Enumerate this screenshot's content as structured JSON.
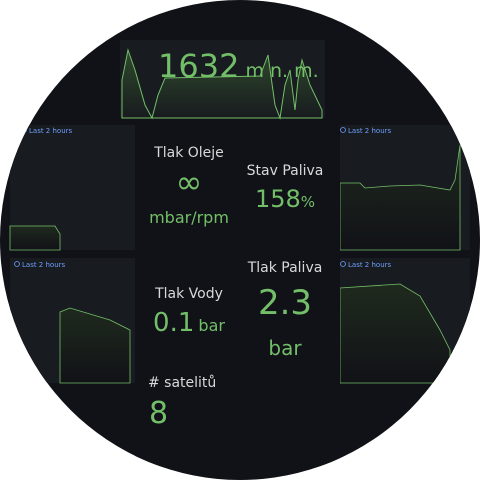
{
  "altitude": {
    "value": 1632,
    "unit": "m n. m."
  },
  "time_ranges": [
    "Last 2 hours",
    "Last 2 hours",
    "Last 2 hours",
    "Last 2 hours"
  ],
  "panels": [
    {
      "title": "Tlak Oleje",
      "value": "∞",
      "unit": "mbar/rpm"
    },
    {
      "title": "Stav Paliva",
      "value": 158,
      "unit": "%"
    },
    {
      "title": "Tlak Vody",
      "value": 0.1,
      "unit": "bar"
    },
    {
      "title": "Tlak Paliva",
      "value": 2.3,
      "unit": "bar"
    },
    {
      "title": "# satelitů",
      "value": 8
    }
  ]
}
